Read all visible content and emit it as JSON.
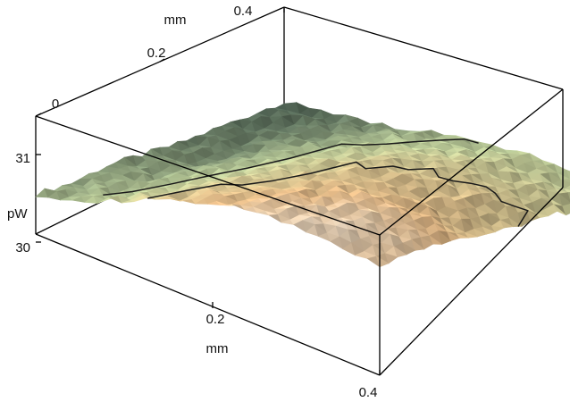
{
  "chart_data": {
    "type": "surface3d",
    "title": "",
    "x_axis": {
      "label": "mm",
      "ticks": [
        "0.2",
        "0.4"
      ],
      "range": [
        0,
        0.4
      ]
    },
    "y_axis": {
      "label": "mm",
      "ticks": [
        "0",
        "0.2",
        "0.4"
      ],
      "range": [
        0,
        0.4
      ]
    },
    "z_axis": {
      "label": "pW",
      "ticks": [
        "30",
        "31"
      ],
      "range": [
        29.7,
        31.6
      ]
    },
    "surface": {
      "description_levels": "height map of power in pW over a 0.4 x 0.4 mm area",
      "z_grid_rows_y": [
        [
          30.3,
          30.5,
          30.8,
          31.1,
          31.3,
          31.4,
          31.4,
          31.3
        ],
        [
          30.2,
          30.4,
          30.7,
          31.0,
          31.2,
          31.35,
          31.4,
          31.3
        ],
        [
          30.2,
          30.3,
          30.6,
          30.9,
          31.1,
          31.25,
          31.3,
          31.2
        ],
        [
          30.1,
          30.2,
          30.5,
          30.8,
          31.0,
          31.1,
          31.1,
          31.0
        ],
        [
          30.0,
          30.1,
          30.4,
          30.7,
          30.9,
          31.0,
          31.0,
          30.9
        ],
        [
          29.95,
          30.05,
          30.3,
          30.6,
          30.75,
          30.85,
          30.85,
          30.8
        ],
        [
          29.9,
          30.0,
          30.2,
          30.45,
          30.6,
          30.7,
          30.7,
          30.65
        ],
        [
          29.85,
          29.95,
          30.1,
          30.3,
          30.45,
          30.55,
          30.55,
          30.5
        ]
      ],
      "contour_levels": [
        30.45,
        30.9
      ],
      "colors": {
        "low": "#3b5048",
        "mid": "#b9c896",
        "high": "#e2b886",
        "peak": "#f4f2ee"
      }
    },
    "grid": false,
    "legend": "none"
  }
}
